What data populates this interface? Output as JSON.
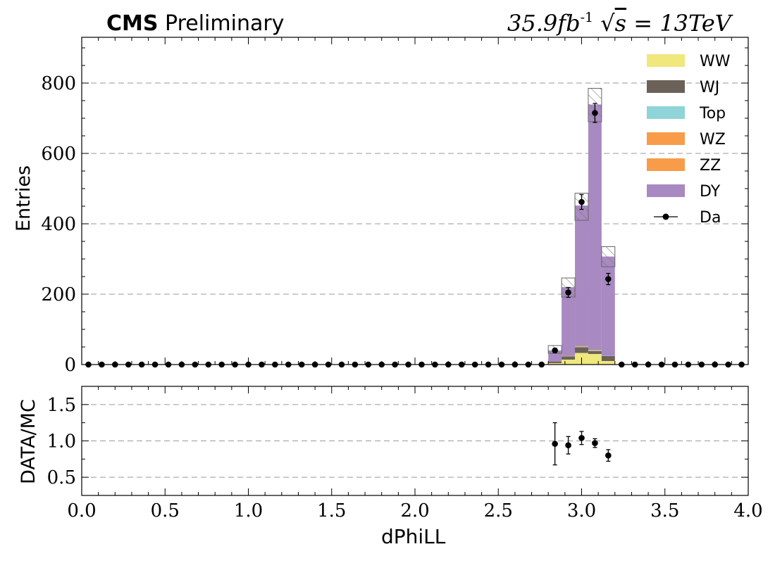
{
  "header": {
    "experiment": "CMS",
    "status": "Preliminary",
    "lumi_value": "35.9",
    "lumi_unit": "fb",
    "lumi_exp": "-1",
    "energy": "13",
    "energy_unit": "TeV"
  },
  "chart_data": [
    {
      "panel": "main",
      "type": "bar",
      "stacked": true,
      "xlabel": "",
      "ylabel": "Entries",
      "xlim": [
        0,
        4
      ],
      "ylim": [
        0,
        930
      ],
      "yticks": [
        0,
        200,
        400,
        600,
        800
      ],
      "grid": true,
      "legend_position": "top-right",
      "bin_edges": [
        2.8,
        2.88,
        2.96,
        3.04,
        3.12,
        3.2
      ],
      "series": [
        {
          "name": "WW",
          "color": "#f0e77d",
          "values": [
            4,
            14,
            33,
            30,
            10
          ]
        },
        {
          "name": "WJ",
          "color": "#6b6158",
          "values": [
            4,
            9,
            16,
            8,
            14
          ]
        },
        {
          "name": "Top",
          "color": "#8ed4d8",
          "values": [
            0,
            1,
            2,
            2,
            1
          ]
        },
        {
          "name": "WZ",
          "color": "#f89c4a",
          "values": [
            0,
            1,
            1,
            1,
            0
          ]
        },
        {
          "name": "ZZ",
          "color": "#f89c4a",
          "values": [
            0,
            0,
            1,
            1,
            0
          ]
        },
        {
          "name": "DY",
          "color": "#a889c1",
          "values": [
            32,
            195,
            399,
            697,
            282
          ]
        }
      ],
      "mc_uncertainty": [
        {
          "low": 32,
          "high": 54
        },
        {
          "low": 192,
          "high": 246
        },
        {
          "low": 410,
          "high": 487
        },
        {
          "low": 690,
          "high": 785
        },
        {
          "low": 278,
          "high": 335
        }
      ],
      "data": {
        "name": "Da",
        "x": [
          0.04,
          0.12,
          0.2,
          0.28,
          0.36,
          0.44,
          0.52,
          0.6,
          0.68,
          0.76,
          0.84,
          0.92,
          1.0,
          1.08,
          1.16,
          1.24,
          1.32,
          1.4,
          1.48,
          1.56,
          1.64,
          1.72,
          1.8,
          1.88,
          1.96,
          2.04,
          2.12,
          2.2,
          2.28,
          2.36,
          2.44,
          2.52,
          2.6,
          2.68,
          2.76,
          2.84,
          2.92,
          3.0,
          3.08,
          3.16,
          3.24,
          3.32,
          3.4,
          3.48,
          3.56,
          3.64,
          3.72,
          3.8,
          3.88,
          3.96
        ],
        "y": [
          0,
          0,
          0,
          0,
          0,
          0,
          0,
          0,
          0,
          0,
          0,
          0,
          0,
          0,
          0,
          0,
          0,
          0,
          0,
          0,
          0,
          0,
          0,
          0,
          0,
          0,
          0,
          0,
          0,
          0,
          0,
          0,
          0,
          0,
          0,
          40,
          205,
          462,
          715,
          243,
          0,
          0,
          0,
          0,
          0,
          0,
          0,
          0,
          0,
          0
        ],
        "err": [
          0,
          0,
          0,
          0,
          0,
          0,
          0,
          0,
          0,
          0,
          0,
          0,
          0,
          0,
          0,
          0,
          0,
          0,
          0,
          0,
          0,
          0,
          0,
          0,
          0,
          0,
          0,
          0,
          0,
          0,
          0,
          0,
          0,
          0,
          0,
          6,
          14,
          21,
          27,
          16,
          0,
          0,
          0,
          0,
          0,
          0,
          0,
          0,
          0,
          0
        ]
      }
    },
    {
      "panel": "ratio",
      "type": "scatter",
      "xlabel": "dPhiLL",
      "ylabel": "DATA/MC",
      "xlim": [
        0,
        4
      ],
      "ylim": [
        0.25,
        1.75
      ],
      "yticks": [
        0.5,
        1.0,
        1.5
      ],
      "ytick_labels": [
        "0.5",
        "1.0",
        "1.5"
      ],
      "xticks": [
        0.0,
        0.5,
        1.0,
        1.5,
        2.0,
        2.5,
        3.0,
        3.5,
        4.0
      ],
      "xtick_labels": [
        "0.0",
        "0.5",
        "1.0",
        "1.5",
        "2.0",
        "2.5",
        "3.0",
        "3.5",
        "4.0"
      ],
      "grid": true,
      "x": [
        2.84,
        2.92,
        3.0,
        3.08,
        3.16
      ],
      "y": [
        0.96,
        0.94,
        1.04,
        0.97,
        0.8
      ],
      "err": [
        0.29,
        0.12,
        0.09,
        0.06,
        0.08
      ]
    }
  ]
}
